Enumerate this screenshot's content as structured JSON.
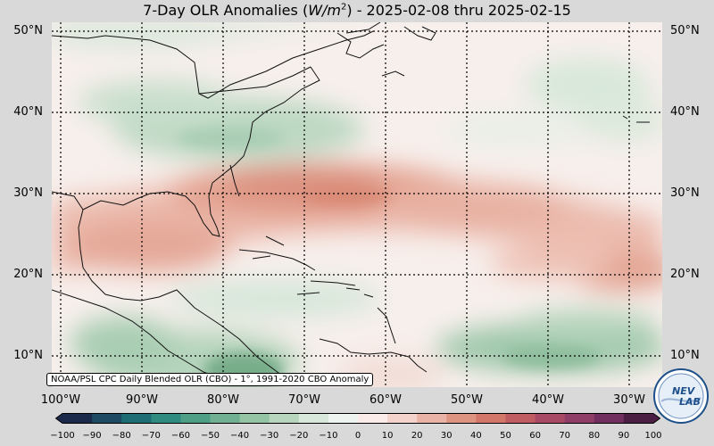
{
  "title": {
    "prefix": "7-Day OLR Anomalies (",
    "units_var": "W/m",
    "units_exp": "2",
    "suffix": ") - 2025-02-08 thru 2025-02-15"
  },
  "lat_labels": [
    "50°N",
    "40°N",
    "30°N",
    "20°N",
    "10°N"
  ],
  "lon_labels": [
    "100°W",
    "90°W",
    "80°W",
    "70°W",
    "60°W",
    "50°W",
    "40°W",
    "30°W"
  ],
  "credit": "NOAA/PSL CPC Daily Blended OLR (CBO) - 1°, 1991-2020 CBO Anomaly",
  "colorbar": {
    "ticks": [
      "−100",
      "−90",
      "−80",
      "−70",
      "−60",
      "−50",
      "−40",
      "−30",
      "−20",
      "−10",
      "0",
      "10",
      "20",
      "30",
      "40",
      "50",
      "60",
      "70",
      "80",
      "90",
      "100"
    ],
    "colors": [
      "#1b2a4a",
      "#1f4a63",
      "#1f6d74",
      "#2f8a7f",
      "#4f9f86",
      "#71b092",
      "#94c4a4",
      "#b8d6be",
      "#d8e8da",
      "#eef4ef",
      "#fbecea",
      "#f4d3cc",
      "#e9b3a7",
      "#dd9582",
      "#d2776a",
      "#c05d63",
      "#a84a66",
      "#8e3e67",
      "#702f5e",
      "#4b1f44"
    ]
  },
  "logo": {
    "text_top": "NEV",
    "text_bottom": "LAB"
  },
  "colors": {
    "background": "#d9d9d9",
    "coast": "#111111",
    "grid": "#000000"
  }
}
